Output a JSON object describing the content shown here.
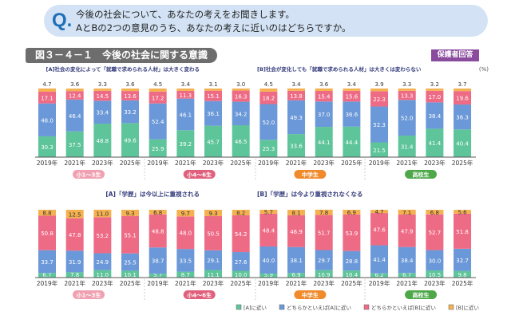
{
  "question": {
    "mark": "Q.",
    "line1": "今後の社会について、あなたの考えをお聞きします。",
    "line2": "AとBの2つの意見のうち、あなたの考えに近いのはどちらですか。"
  },
  "figure_title": "図３－４－１　今後の社会に関する意識",
  "badge": "保護者回答",
  "unit": "(%)",
  "colors": {
    "A": "#5ec49a",
    "leanA": "#6b98d8",
    "leanB": "#ee6b86",
    "B": "#f5b04f"
  },
  "chart_data": [
    {
      "type": "bar",
      "stacked": true,
      "label_a": "[A]社会の変化によって「就職で求められる人材」は大きく変わる",
      "label_b": "[B]社会が変化しても「就職で求められる人材」は大きくは変わらない",
      "groups": [
        {
          "name": "小1～3生",
          "color": "#f0a0b0"
        },
        {
          "name": "小4～6生",
          "color": "#e0607c"
        },
        {
          "name": "中学生",
          "color": "#f08a2a"
        },
        {
          "name": "高校生",
          "color": "#4ea84a"
        }
      ],
      "categories": [
        "2019年",
        "2021年",
        "2023年",
        "2025年",
        "2019年",
        "2021年",
        "2023年",
        "2025年",
        "2019年",
        "2021年",
        "2023年",
        "2025年",
        "2019年",
        "2021年",
        "2023年",
        "2025年"
      ],
      "series": [
        {
          "name": "[A]に近い",
          "values": [
            30.3,
            37.5,
            48.8,
            49.6,
            25.9,
            39.2,
            45.7,
            46.5,
            25.3,
            33.6,
            44.1,
            44.4,
            21.5,
            31.4,
            41.4,
            40.4
          ]
        },
        {
          "name": "どちらかといえば[A]に近い",
          "values": [
            48.0,
            46.4,
            33.4,
            33.2,
            52.4,
            46.1,
            36.1,
            34.2,
            52.0,
            49.3,
            37.0,
            36.6,
            52.3,
            52.0,
            38.4,
            36.3
          ]
        },
        {
          "name": "どちらかといえば[B]に近い",
          "values": [
            17.1,
            12.4,
            14.5,
            13.6,
            17.2,
            11.3,
            15.1,
            16.3,
            18.2,
            13.8,
            15.4,
            15.6,
            22.3,
            13.3,
            17.0,
            19.6
          ]
        },
        {
          "name": "[B]に近い",
          "values": [
            4.7,
            3.6,
            3.3,
            3.6,
            4.5,
            3.4,
            3.1,
            3.0,
            4.5,
            3.4,
            3.6,
            3.4,
            3.9,
            3.3,
            3.2,
            3.7
          ]
        }
      ],
      "ylim": [
        0,
        100
      ]
    },
    {
      "type": "bar",
      "stacked": true,
      "label_a": "[A]「学歴」は今以上に重視される",
      "label_b": "[B]「学歴」は今より重視されなくなる",
      "groups": [
        {
          "name": "小1～3生",
          "color": "#f0a0b0"
        },
        {
          "name": "小4～6生",
          "color": "#e0607c"
        },
        {
          "name": "中学生",
          "color": "#f08a2a"
        },
        {
          "name": "高校生",
          "color": "#4ea84a"
        }
      ],
      "categories": [
        "2019年",
        "2021年",
        "2023年",
        "2025年",
        "2019年",
        "2021年",
        "2023年",
        "2025年",
        "2019年",
        "2021年",
        "2023年",
        "2025年",
        "2019年",
        "2021年",
        "2023年",
        "2025年"
      ],
      "series": [
        {
          "name": "[A]に近い",
          "values": [
            6.7,
            7.8,
            11.0,
            10.1,
            5.7,
            8.7,
            11.1,
            10.0,
            5.9,
            6.9,
            10.9,
            10.4,
            6.2,
            6.7,
            10.5,
            9.8
          ]
        },
        {
          "name": "どちらかといえば[A]に近い",
          "values": [
            33.7,
            31.9,
            24.9,
            25.5,
            38.7,
            33.5,
            29.1,
            27.6,
            40.0,
            38.1,
            29.7,
            28.8,
            41.4,
            38.4,
            30.0,
            32.7
          ]
        },
        {
          "name": "どちらかといえば[B]に近い",
          "values": [
            50.8,
            47.8,
            53.2,
            55.1,
            48.8,
            48.0,
            50.5,
            54.2,
            48.4,
            46.9,
            51.7,
            53.9,
            47.6,
            47.9,
            52.7,
            51.8
          ]
        },
        {
          "name": "[B]に近い",
          "values": [
            8.8,
            12.5,
            11.0,
            9.3,
            6.8,
            9.7,
            9.3,
            8.2,
            5.7,
            8.1,
            7.8,
            6.9,
            4.7,
            7.1,
            6.8,
            5.6
          ]
        }
      ],
      "ylim": [
        0,
        100
      ]
    }
  ],
  "legend": [
    "[A]に近い",
    "どちらかといえば[A]に近い",
    "どちらかといえば[B]に近い",
    "[B]に近い"
  ]
}
